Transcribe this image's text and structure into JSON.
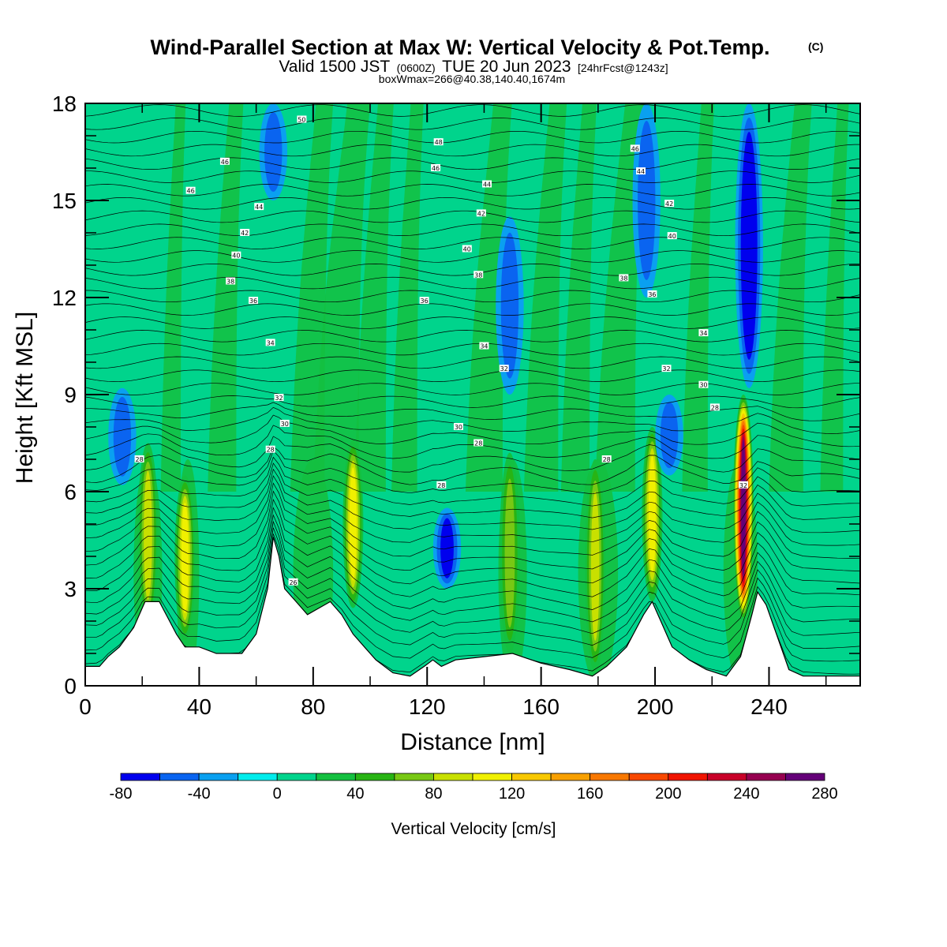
{
  "title": {
    "main": "Wind-Parallel Section at Max W: Vertical Velocity & Pot.Temp.",
    "main_sup": "(C)",
    "line2_a": "Valid 1500 JST",
    "line2_b": "(0600Z)",
    "line2_c": "TUE 20 Jun 2023",
    "line2_d": "[24hrFcst@1243z]",
    "line3": "boxWmax=266@40.38,140.40,1674m"
  },
  "chart_data": {
    "type": "heatmap",
    "xlabel": "Distance [nm]",
    "ylabel": "Height [Kft MSL]",
    "xlim": [
      0,
      272
    ],
    "ylim": [
      0,
      18
    ],
    "x_ticks": [
      "0",
      "40",
      "80",
      "120",
      "160",
      "200",
      "240"
    ],
    "y_ticks": [
      "0",
      "3",
      "6",
      "9",
      "12",
      "15",
      "18"
    ],
    "colorbar": {
      "title": "Vertical Velocity [cm/s]",
      "tick_labels": [
        "-80",
        "-40",
        "0",
        "40",
        "80",
        "120",
        "160",
        "200",
        "240",
        "280"
      ],
      "levels": [
        -80,
        -60,
        -40,
        -20,
        0,
        20,
        40,
        60,
        80,
        100,
        120,
        140,
        160,
        180,
        200,
        220,
        240,
        260,
        280
      ],
      "colors": [
        "#0000ee",
        "#0a64f0",
        "#0aa0f0",
        "#00ecec",
        "#00d48c",
        "#14c040",
        "#28b414",
        "#78c814",
        "#c8e000",
        "#f0f000",
        "#f8c800",
        "#f8a000",
        "#f87800",
        "#f84800",
        "#f01400",
        "#c80028",
        "#960050",
        "#640078"
      ]
    },
    "background_value_cms": 5,
    "terrain_kft": [
      [
        0,
        0.6
      ],
      [
        5,
        0.6
      ],
      [
        8,
        0.9
      ],
      [
        12,
        1.2
      ],
      [
        17,
        1.8
      ],
      [
        21,
        2.6
      ],
      [
        26,
        2.6
      ],
      [
        29,
        2.1
      ],
      [
        32,
        1.6
      ],
      [
        35,
        1.2
      ],
      [
        40,
        1.2
      ],
      [
        46,
        1.0
      ],
      [
        55,
        1.0
      ],
      [
        60,
        1.6
      ],
      [
        64,
        3.0
      ],
      [
        66,
        4.6
      ],
      [
        68,
        4.0
      ],
      [
        70,
        3.0
      ],
      [
        74,
        2.6
      ],
      [
        78,
        2.2
      ],
      [
        82,
        2.4
      ],
      [
        86,
        2.6
      ],
      [
        90,
        2.2
      ],
      [
        94,
        1.6
      ],
      [
        98,
        1.2
      ],
      [
        102,
        0.8
      ],
      [
        108,
        0.4
      ],
      [
        114,
        0.3
      ],
      [
        119,
        0.6
      ],
      [
        122,
        0.8
      ],
      [
        125,
        0.6
      ],
      [
        130,
        0.8
      ],
      [
        140,
        0.9
      ],
      [
        150,
        1.0
      ],
      [
        160,
        0.7
      ],
      [
        170,
        0.5
      ],
      [
        178,
        0.3
      ],
      [
        183,
        0.6
      ],
      [
        190,
        1.2
      ],
      [
        196,
        2.2
      ],
      [
        199,
        2.6
      ],
      [
        202,
        2.0
      ],
      [
        206,
        1.2
      ],
      [
        212,
        0.8
      ],
      [
        218,
        0.5
      ],
      [
        225,
        0.3
      ],
      [
        230,
        0.9
      ],
      [
        234,
        2.2
      ],
      [
        236,
        2.9
      ],
      [
        239,
        2.5
      ],
      [
        243,
        1.5
      ],
      [
        247,
        0.5
      ],
      [
        252,
        0.3
      ],
      [
        272,
        0.3
      ]
    ],
    "updrafts": [
      {
        "x": 22,
        "zb": 1.8,
        "zt": 7.5,
        "peak_cms": 90
      },
      {
        "x": 35,
        "zb": 1.4,
        "zt": 6.5,
        "peak_cms": 105
      },
      {
        "x": 94,
        "zb": 2.4,
        "zt": 7.6,
        "peak_cms": 110
      },
      {
        "x": 149,
        "zb": 1.0,
        "zt": 7.2,
        "peak_cms": 75
      },
      {
        "x": 179,
        "zb": 0.4,
        "zt": 7.0,
        "peak_cms": 90
      },
      {
        "x": 199,
        "zb": 2.6,
        "zt": 8.0,
        "peak_cms": 110
      },
      {
        "x": 231,
        "zb": 2.0,
        "zt": 9.0,
        "peak_cms": 266
      }
    ],
    "downdrafts": [
      {
        "x": 13,
        "zb": 6.2,
        "zt": 9.2,
        "peak_cms": -45
      },
      {
        "x": 127,
        "zb": 3.0,
        "zt": 5.5,
        "peak_cms": -60
      },
      {
        "x": 149,
        "zb": 9.0,
        "zt": 14.5,
        "peak_cms": -50
      },
      {
        "x": 205,
        "zb": 6.5,
        "zt": 9.0,
        "peak_cms": -40
      },
      {
        "x": 197,
        "zb": 12.0,
        "zt": 18.0,
        "peak_cms": -45
      },
      {
        "x": 233,
        "zb": 9.2,
        "zt": 18.0,
        "peak_cms": -80
      },
      {
        "x": 66,
        "zb": 15.0,
        "zt": 18.0,
        "peak_cms": -40
      }
    ],
    "theta_contours_c": {
      "interval": 1,
      "labeled": [
        "26",
        "28",
        "30",
        "32",
        "34",
        "36",
        "38",
        "40",
        "42",
        "44",
        "46",
        "48",
        "50"
      ],
      "label_points": [
        {
          "text": "50",
          "x": 76,
          "z": 17.5
        },
        {
          "text": "48",
          "x": 124,
          "z": 16.8
        },
        {
          "text": "46",
          "x": 49,
          "z": 16.2
        },
        {
          "text": "46",
          "x": 123,
          "z": 16.0
        },
        {
          "text": "46",
          "x": 37,
          "z": 15.3
        },
        {
          "text": "44",
          "x": 141,
          "z": 15.5
        },
        {
          "text": "44",
          "x": 61,
          "z": 14.8
        },
        {
          "text": "42",
          "x": 139,
          "z": 14.6
        },
        {
          "text": "42",
          "x": 56,
          "z": 14.0
        },
        {
          "text": "40",
          "x": 134,
          "z": 13.5
        },
        {
          "text": "40",
          "x": 53,
          "z": 13.3
        },
        {
          "text": "38",
          "x": 138,
          "z": 12.7
        },
        {
          "text": "38",
          "x": 51,
          "z": 12.5
        },
        {
          "text": "36",
          "x": 119,
          "z": 11.9
        },
        {
          "text": "36",
          "x": 59,
          "z": 11.9
        },
        {
          "text": "34",
          "x": 140,
          "z": 10.5
        },
        {
          "text": "34",
          "x": 65,
          "z": 10.6
        },
        {
          "text": "32",
          "x": 147,
          "z": 9.8
        },
        {
          "text": "32",
          "x": 68,
          "z": 8.9
        },
        {
          "text": "30",
          "x": 70,
          "z": 8.1
        },
        {
          "text": "30",
          "x": 131,
          "z": 8.0
        },
        {
          "text": "28",
          "x": 138,
          "z": 7.5
        },
        {
          "text": "28",
          "x": 65,
          "z": 7.3
        },
        {
          "text": "28",
          "x": 19,
          "z": 7.0
        },
        {
          "text": "28",
          "x": 125,
          "z": 6.2
        },
        {
          "text": "28",
          "x": 183,
          "z": 7.0
        },
        {
          "text": "26",
          "x": 73,
          "z": 3.2
        },
        {
          "text": "46",
          "x": 193,
          "z": 16.6
        },
        {
          "text": "44",
          "x": 195,
          "z": 15.9
        },
        {
          "text": "42",
          "x": 205,
          "z": 14.9
        },
        {
          "text": "40",
          "x": 206,
          "z": 13.9
        },
        {
          "text": "38",
          "x": 189,
          "z": 12.6
        },
        {
          "text": "36",
          "x": 199,
          "z": 12.1
        },
        {
          "text": "34",
          "x": 217,
          "z": 10.9
        },
        {
          "text": "32",
          "x": 204,
          "z": 9.8
        },
        {
          "text": "30",
          "x": 217,
          "z": 9.3
        },
        {
          "text": "28",
          "x": 221,
          "z": 8.6
        },
        {
          "text": "32",
          "x": 231,
          "z": 6.2
        }
      ]
    }
  }
}
